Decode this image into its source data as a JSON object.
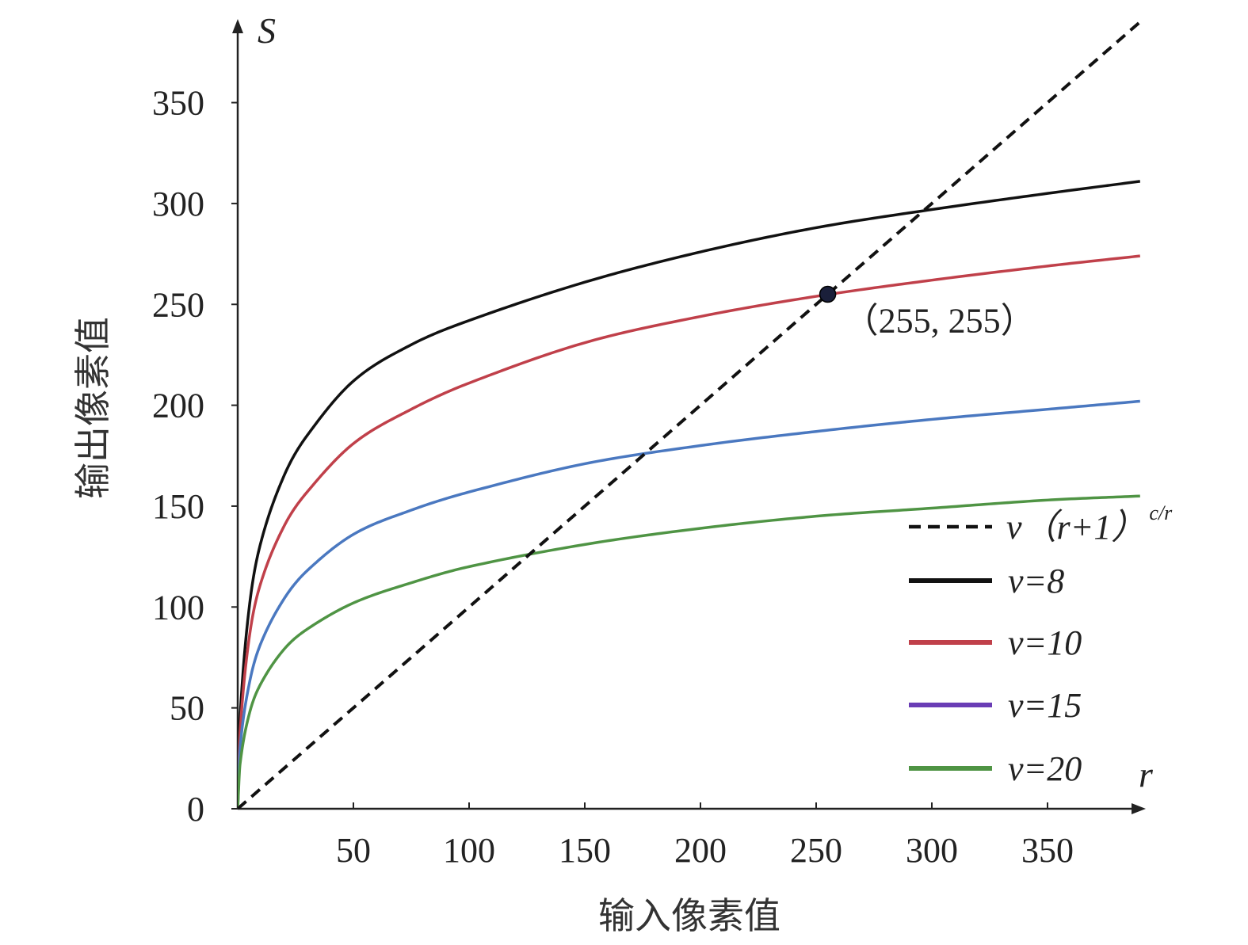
{
  "chart_data": {
    "type": "line",
    "xlabel": "输入像素值",
    "ylabel": "输出像素值",
    "x_axis_var": "r",
    "y_axis_var": "S",
    "xlim": [
      0,
      390
    ],
    "ylim": [
      0,
      385
    ],
    "x_ticks": [
      50,
      100,
      150,
      200,
      250,
      300,
      350
    ],
    "y_ticks": [
      0,
      50,
      100,
      150,
      200,
      250,
      300,
      350
    ],
    "grid": false,
    "legend_position": "bottom-right",
    "annotation": {
      "x": 255,
      "y": 255,
      "label": "（255, 255）"
    },
    "series": [
      {
        "name_parts": [
          "v（",
          "r+1",
          "）",
          "c/r"
        ],
        "style": "dashed",
        "color": "#111111",
        "x": [
          0,
          390
        ],
        "y": [
          0,
          390
        ]
      },
      {
        "name": "v=8",
        "style": "solid",
        "color": "#111111",
        "x": [
          0,
          1,
          5,
          10,
          20,
          30,
          50,
          75,
          100,
          150,
          200,
          250,
          300,
          350,
          390
        ],
        "y": [
          0,
          45,
          100,
          132,
          165,
          185,
          212,
          230,
          242,
          261,
          276,
          288,
          297,
          305,
          311
        ]
      },
      {
        "name": "v=10",
        "style": "solid",
        "color": "#c0404a",
        "x": [
          0,
          1,
          5,
          10,
          20,
          30,
          50,
          75,
          100,
          150,
          200,
          250,
          300,
          350,
          390
        ],
        "y": [
          0,
          38,
          85,
          112,
          140,
          157,
          181,
          198,
          211,
          231,
          244,
          254,
          262,
          269,
          274
        ]
      },
      {
        "name": "v=15",
        "style": "solid",
        "color": "#4a78c0",
        "legend_color": "#6a3db5",
        "x": [
          0,
          1,
          5,
          10,
          20,
          30,
          50,
          75,
          100,
          150,
          200,
          250,
          300,
          350,
          390
        ],
        "y": [
          0,
          30,
          62,
          82,
          104,
          118,
          136,
          148,
          157,
          171,
          180,
          187,
          193,
          198,
          202
        ]
      },
      {
        "name": "v=20",
        "style": "solid",
        "color": "#4f9444",
        "x": [
          0,
          1,
          5,
          10,
          20,
          30,
          50,
          75,
          100,
          150,
          200,
          250,
          300,
          350,
          390
        ],
        "y": [
          0,
          22,
          47,
          62,
          79,
          89,
          102,
          112,
          120,
          131,
          139,
          145,
          149,
          153,
          155
        ]
      }
    ]
  }
}
